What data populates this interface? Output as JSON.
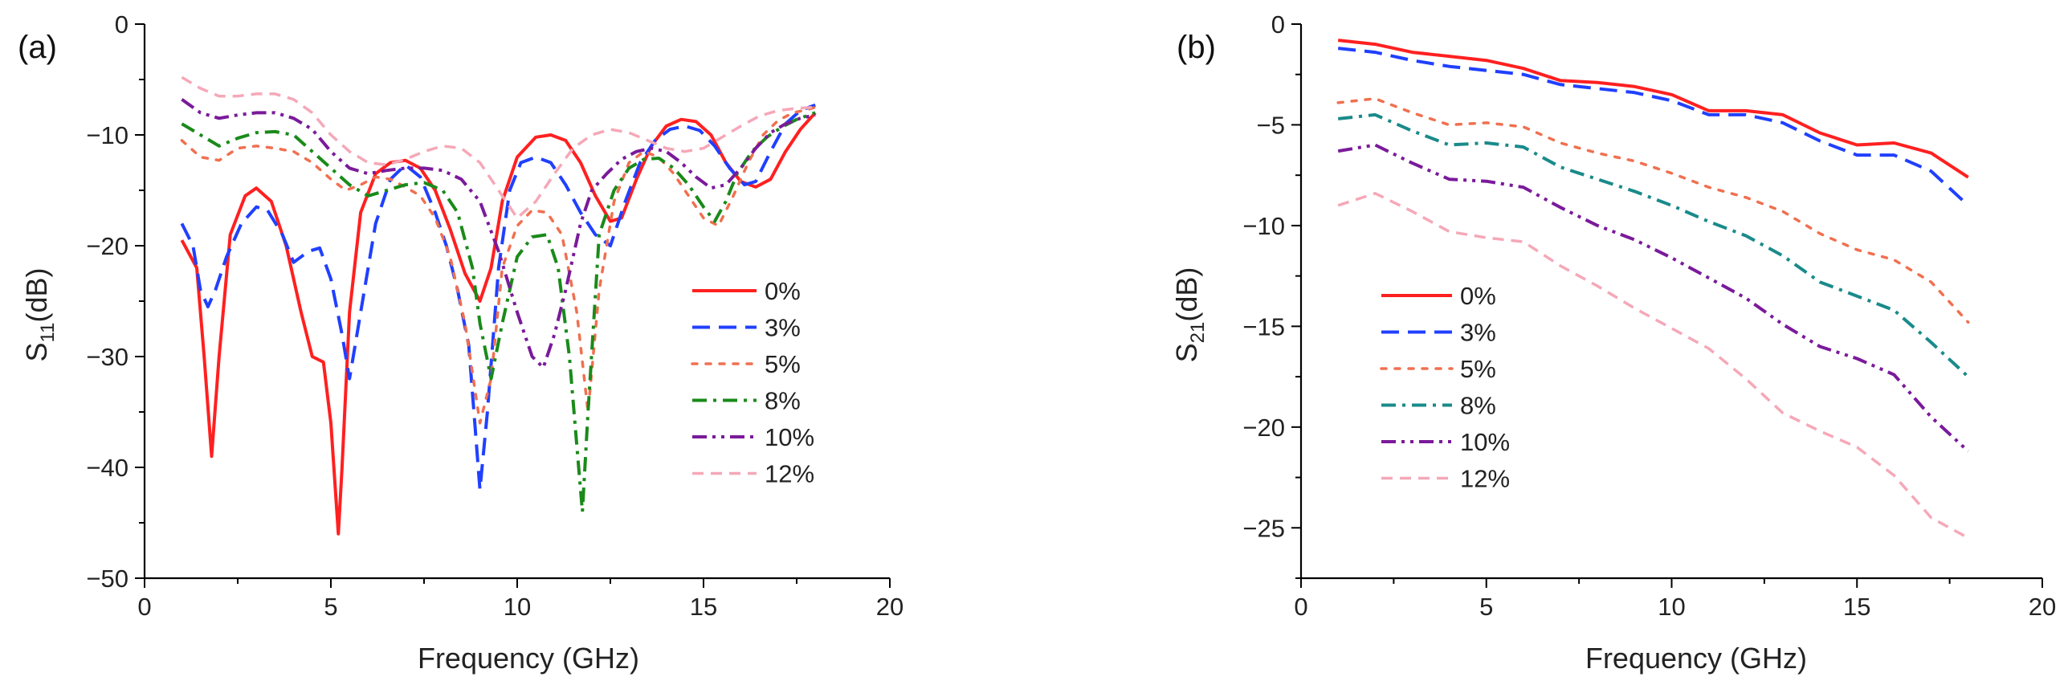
{
  "colors": {
    "0%": "#ff2020",
    "3%": "#2040ff",
    "5%": "#f07050",
    "8%": "#1a8a1a",
    "10%": "#7a1a9a",
    "12%": "#f5a8b8",
    "8%_b": "#1a8a8a"
  },
  "chart_data": [
    {
      "type": "line",
      "panel_label": "(a)",
      "xlabel": "Frequency (GHz)",
      "ylabel": "S11(dB)",
      "ylabel_main": "S",
      "ylabel_sub": "11",
      "ylabel_tail": "(dB)",
      "xlim": [
        0,
        20
      ],
      "ylim": [
        -50,
        0
      ],
      "xticks": [
        0,
        5,
        10,
        15,
        20
      ],
      "yticks": [
        0,
        -10,
        -20,
        -30,
        -40,
        -50
      ],
      "xtick_labels": [
        "0",
        "5",
        "10",
        "15",
        "20"
      ],
      "ytick_labels": [
        "0",
        "−10",
        "−20",
        "−30",
        "−40",
        "−50"
      ],
      "legend_position": "center-right",
      "series": [
        {
          "name": "0%",
          "style": "solid",
          "x": [
            1.0,
            1.4,
            1.6,
            1.8,
            2.0,
            2.3,
            2.7,
            3.0,
            3.4,
            3.8,
            4.2,
            4.5,
            4.8,
            5.0,
            5.2,
            5.3,
            5.5,
            5.8,
            6.2,
            6.6,
            7.0,
            7.4,
            7.8,
            8.2,
            8.6,
            9.0,
            9.3,
            9.6,
            10.0,
            10.5,
            10.9,
            11.3,
            11.7,
            12.1,
            12.5,
            12.8,
            13.2,
            13.6,
            14.0,
            14.4,
            14.8,
            15.2,
            15.6,
            16.0,
            16.4,
            16.8,
            17.2,
            17.6,
            18.0
          ],
          "y": [
            -19.5,
            -22,
            -30,
            -39,
            -30,
            -19,
            -15.5,
            -14.8,
            -16,
            -20,
            -26,
            -30,
            -30.5,
            -36,
            -46,
            -40,
            -26,
            -17,
            -13.5,
            -12.5,
            -12.3,
            -13,
            -15,
            -18.5,
            -22.5,
            -25,
            -22,
            -16,
            -12,
            -10.2,
            -10,
            -10.5,
            -12.5,
            -15.5,
            -17.8,
            -17.5,
            -14,
            -11,
            -9.2,
            -8.6,
            -8.8,
            -10,
            -12.5,
            -14.2,
            -14.7,
            -14,
            -11.5,
            -9.5,
            -8
          ]
        },
        {
          "name": "3%",
          "style": "dashed",
          "x": [
            1.0,
            1.3,
            1.5,
            1.7,
            1.9,
            2.2,
            2.6,
            3.0,
            3.3,
            3.7,
            4.0,
            4.4,
            4.7,
            5.0,
            5.3,
            5.5,
            5.8,
            6.2,
            6.6,
            7.0,
            7.4,
            7.8,
            8.1,
            8.4,
            8.7,
            9.0,
            9.2,
            9.5,
            9.8,
            10.1,
            10.5,
            10.9,
            11.3,
            11.7,
            12.1,
            12.5,
            12.9,
            13.3,
            13.7,
            14.1,
            14.5,
            14.9,
            15.3,
            15.7,
            16.1,
            16.4,
            16.8,
            17.2,
            17.6,
            18.0
          ],
          "y": [
            -18,
            -20,
            -24,
            -25.5,
            -24,
            -21,
            -18,
            -16.5,
            -16.8,
            -19,
            -21.5,
            -20.5,
            -20.2,
            -23,
            -28,
            -32,
            -26,
            -18,
            -14,
            -12.7,
            -13.8,
            -17,
            -20,
            -24,
            -29,
            -42,
            -35,
            -22,
            -15,
            -12.5,
            -12,
            -12.5,
            -14.5,
            -17,
            -19,
            -20,
            -16,
            -12.5,
            -10.5,
            -9.5,
            -9.2,
            -9.6,
            -11,
            -13,
            -14.5,
            -14.2,
            -11.5,
            -9,
            -7.8,
            -7.3
          ]
        },
        {
          "name": "5%",
          "style": "dotted",
          "x": [
            1.0,
            1.5,
            2.0,
            2.5,
            3.0,
            3.5,
            4.0,
            4.5,
            5.0,
            5.4,
            5.8,
            6.2,
            6.6,
            7.0,
            7.4,
            7.8,
            8.2,
            8.6,
            9.0,
            9.3,
            9.6,
            10.0,
            10.4,
            10.8,
            11.2,
            11.6,
            11.9,
            12.2,
            12.6,
            13.0,
            13.4,
            13.8,
            14.2,
            14.6,
            15.0,
            15.4,
            15.8,
            16.2,
            16.6,
            17.0,
            17.4,
            17.8,
            18.0
          ],
          "y": [
            -10.5,
            -12,
            -12.3,
            -11.2,
            -11,
            -11.2,
            -11.5,
            -12.5,
            -14,
            -15,
            -14.5,
            -13.8,
            -14,
            -14.7,
            -15.5,
            -17.5,
            -21,
            -27,
            -36,
            -32,
            -22,
            -18.2,
            -16.8,
            -17,
            -19,
            -26,
            -35,
            -24,
            -16,
            -12.5,
            -11.5,
            -12,
            -13.5,
            -15.5,
            -17.5,
            -18.2,
            -15.5,
            -12.5,
            -10,
            -8.7,
            -8,
            -7.7,
            -7.5
          ]
        },
        {
          "name": "8%",
          "style": "dashdot",
          "x": [
            1.0,
            1.5,
            2.0,
            2.5,
            3.0,
            3.5,
            4.0,
            4.5,
            5.0,
            5.5,
            6.0,
            6.5,
            7.0,
            7.5,
            8.0,
            8.4,
            8.8,
            9.0,
            9.3,
            9.6,
            10.0,
            10.4,
            10.8,
            11.1,
            11.4,
            11.6,
            11.75,
            11.9,
            12.2,
            12.6,
            13.0,
            13.4,
            13.8,
            14.2,
            14.6,
            15.0,
            15.3,
            15.6,
            15.9,
            16.3,
            16.7,
            17.1,
            17.5,
            18.0
          ],
          "y": [
            -9,
            -10,
            -11,
            -10.3,
            -9.8,
            -9.7,
            -10,
            -11.5,
            -13,
            -14.5,
            -15.5,
            -15,
            -14.5,
            -14.3,
            -15,
            -17,
            -22,
            -27,
            -32,
            -27,
            -21,
            -19.2,
            -19,
            -22,
            -30,
            -38,
            -44,
            -35,
            -19,
            -15,
            -13,
            -12.2,
            -12.1,
            -13,
            -14.5,
            -16.5,
            -17.8,
            -16,
            -13.5,
            -11.5,
            -10.2,
            -9.3,
            -8.6,
            -8
          ]
        },
        {
          "name": "10%",
          "style": "dashdotdot",
          "x": [
            1.0,
            1.5,
            2.0,
            2.5,
            3.0,
            3.5,
            4.0,
            4.5,
            5.0,
            5.5,
            6.0,
            6.5,
            7.0,
            7.5,
            8.0,
            8.5,
            9.0,
            9.5,
            10.0,
            10.4,
            10.7,
            11.0,
            11.3,
            11.7,
            12.0,
            12.4,
            12.8,
            13.2,
            13.6,
            14.0,
            14.4,
            14.8,
            15.2,
            15.6,
            16.0,
            16.4,
            16.8,
            17.2,
            17.6,
            18.0
          ],
          "y": [
            -6.8,
            -8,
            -8.5,
            -8.2,
            -8,
            -8,
            -8.5,
            -9.5,
            -11.5,
            -13,
            -13.5,
            -13.2,
            -13,
            -13,
            -13.2,
            -14,
            -16,
            -20.5,
            -26,
            -30,
            -31,
            -28,
            -24,
            -18,
            -15,
            -13.5,
            -12.2,
            -11.5,
            -11.2,
            -11.5,
            -12.5,
            -13.8,
            -14.8,
            -14.5,
            -13,
            -11.2,
            -9.8,
            -9,
            -8.5,
            -8.2
          ]
        },
        {
          "name": "12%",
          "style": "dashed-light",
          "x": [
            1.0,
            1.5,
            2.0,
            2.5,
            3.0,
            3.5,
            4.0,
            4.5,
            5.0,
            5.5,
            6.0,
            6.5,
            7.0,
            7.5,
            8.0,
            8.5,
            9.0,
            9.5,
            10.0,
            10.5,
            11.0,
            11.5,
            12.0,
            12.5,
            13.0,
            13.5,
            14.0,
            14.5,
            15.0,
            15.5,
            16.0,
            16.5,
            17.0,
            17.5,
            18.0
          ],
          "y": [
            -4.8,
            -5.8,
            -6.5,
            -6.5,
            -6.3,
            -6.3,
            -6.8,
            -8,
            -10,
            -11.5,
            -12.5,
            -12.7,
            -12.2,
            -11.5,
            -11,
            -11.2,
            -12.5,
            -15,
            -17.5,
            -16,
            -13.5,
            -11.2,
            -10,
            -9.5,
            -9.8,
            -10.5,
            -11.2,
            -11.5,
            -11.2,
            -10.2,
            -9.2,
            -8.3,
            -7.8,
            -7.6,
            -7.5
          ]
        }
      ]
    },
    {
      "type": "line",
      "panel_label": "(b)",
      "xlabel": "Frequency (GHz)",
      "ylabel": "S21(dB)",
      "ylabel_main": "S",
      "ylabel_sub": "21",
      "ylabel_tail": "(dB)",
      "xlim": [
        0,
        20
      ],
      "ylim": [
        -27.5,
        0
      ],
      "xticks": [
        0,
        5,
        10,
        15,
        20
      ],
      "yticks": [
        0,
        -5,
        -10,
        -15,
        -20,
        -25
      ],
      "xtick_labels": [
        "0",
        "5",
        "10",
        "15",
        "20"
      ],
      "ytick_labels": [
        "0",
        "−5",
        "−10",
        "−15",
        "−20",
        "−25"
      ],
      "legend_position": "center-left",
      "series": [
        {
          "name": "0%",
          "style": "solid",
          "x": [
            1,
            2,
            3,
            4,
            5,
            6,
            7,
            8,
            9,
            10,
            11,
            12,
            13,
            14,
            15,
            16,
            17,
            18
          ],
          "y": [
            -0.8,
            -1.0,
            -1.4,
            -1.6,
            -1.8,
            -2.2,
            -2.8,
            -2.9,
            -3.1,
            -3.5,
            -4.3,
            -4.3,
            -4.5,
            -5.4,
            -6.0,
            -5.9,
            -6.4,
            -7.6
          ]
        },
        {
          "name": "3%",
          "style": "dashed",
          "x": [
            1,
            2,
            3,
            4,
            5,
            6,
            7,
            8,
            9,
            10,
            11,
            12,
            13,
            14,
            15,
            16,
            17,
            18
          ],
          "y": [
            -1.2,
            -1.4,
            -1.8,
            -2.1,
            -2.3,
            -2.5,
            -3.0,
            -3.2,
            -3.4,
            -3.8,
            -4.5,
            -4.5,
            -4.9,
            -5.8,
            -6.5,
            -6.5,
            -7.3,
            -9.0
          ]
        },
        {
          "name": "5%",
          "style": "dotted",
          "x": [
            1,
            2,
            3,
            4,
            5,
            6,
            7,
            8,
            9,
            10,
            11,
            12,
            13,
            14,
            15,
            16,
            17,
            18
          ],
          "y": [
            -3.9,
            -3.7,
            -4.4,
            -5.0,
            -4.9,
            -5.1,
            -5.9,
            -6.4,
            -6.8,
            -7.4,
            -8.1,
            -8.6,
            -9.3,
            -10.4,
            -11.2,
            -11.7,
            -12.8,
            -14.8
          ]
        },
        {
          "name": "8%",
          "style": "dashdot",
          "x": [
            1,
            2,
            3,
            4,
            5,
            6,
            7,
            8,
            9,
            10,
            11,
            12,
            13,
            14,
            15,
            16,
            17,
            18
          ],
          "y": [
            -4.7,
            -4.5,
            -5.3,
            -6.0,
            -5.9,
            -6.1,
            -7.1,
            -7.7,
            -8.3,
            -9.0,
            -9.8,
            -10.5,
            -11.5,
            -12.8,
            -13.5,
            -14.2,
            -15.8,
            -17.5
          ]
        },
        {
          "name": "10%",
          "style": "dashdotdot",
          "x": [
            1,
            2,
            3,
            4,
            5,
            6,
            7,
            8,
            9,
            10,
            11,
            12,
            13,
            14,
            15,
            16,
            17,
            18
          ],
          "y": [
            -6.3,
            -6.0,
            -6.9,
            -7.7,
            -7.8,
            -8.1,
            -9.1,
            -10.0,
            -10.7,
            -11.6,
            -12.6,
            -13.6,
            -14.9,
            -16.0,
            -16.6,
            -17.4,
            -19.5,
            -21.2
          ]
        },
        {
          "name": "12%",
          "style": "dashed-light",
          "x": [
            1,
            2,
            3,
            4,
            5,
            6,
            7,
            8,
            9,
            10,
            11,
            12,
            13,
            14,
            15,
            16,
            17,
            18
          ],
          "y": [
            -9.0,
            -8.4,
            -9.3,
            -10.3,
            -10.6,
            -10.8,
            -12.0,
            -13.0,
            -14.1,
            -15.1,
            -16.1,
            -17.6,
            -19.3,
            -20.2,
            -21.0,
            -22.4,
            -24.5,
            -25.5
          ]
        }
      ]
    }
  ]
}
